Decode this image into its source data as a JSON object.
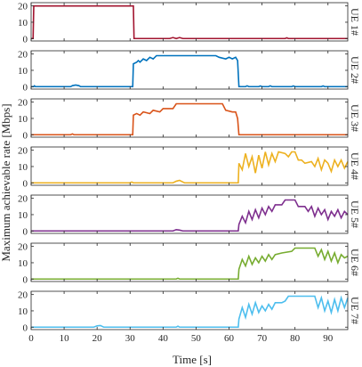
{
  "chart_data": {
    "type": "line",
    "xlabel": "Time [s]",
    "ylabel": "Maximum achievable rate [Mbps]",
    "xlim": [
      0,
      96
    ],
    "ylim": [
      -1.5,
      22
    ],
    "x_ticks": [
      0,
      10,
      20,
      30,
      40,
      50,
      60,
      70,
      80,
      90
    ],
    "y_ticks": [
      0,
      10,
      20
    ],
    "grid": false,
    "panels": [
      {
        "label": "UE 1#",
        "color": "#A2142F",
        "points": [
          [
            0,
            0
          ],
          [
            0.6,
            0
          ],
          [
            0.8,
            20
          ],
          [
            31,
            20
          ],
          [
            31.2,
            0
          ],
          [
            42,
            0
          ],
          [
            43,
            0.6
          ],
          [
            44,
            0
          ],
          [
            45,
            0.6
          ],
          [
            46,
            0
          ],
          [
            77,
            0
          ],
          [
            77.5,
            0.4
          ],
          [
            78,
            0
          ],
          [
            96,
            0
          ]
        ]
      },
      {
        "label": "UE 2#",
        "color": "#0072BD",
        "points": [
          [
            0,
            0
          ],
          [
            0.8,
            0
          ],
          [
            1,
            0.5
          ],
          [
            1.3,
            0
          ],
          [
            12,
            0
          ],
          [
            12.5,
            0.6
          ],
          [
            13.5,
            1
          ],
          [
            14.5,
            0.6
          ],
          [
            15,
            0
          ],
          [
            30.8,
            0
          ],
          [
            31,
            14
          ],
          [
            32,
            15
          ],
          [
            32.5,
            16
          ],
          [
            33,
            15
          ],
          [
            34,
            17
          ],
          [
            35,
            16
          ],
          [
            36,
            18
          ],
          [
            37,
            17
          ],
          [
            38,
            19
          ],
          [
            56,
            19
          ],
          [
            57,
            18
          ],
          [
            59,
            17
          ],
          [
            60,
            18
          ],
          [
            61,
            17
          ],
          [
            62,
            18
          ],
          [
            62.6,
            16
          ],
          [
            63,
            0
          ],
          [
            65,
            0
          ],
          [
            65.5,
            0.5
          ],
          [
            66,
            0
          ],
          [
            69,
            0
          ],
          [
            69.5,
            0.4
          ],
          [
            70,
            0
          ],
          [
            72,
            0
          ],
          [
            72.5,
            0.5
          ],
          [
            73,
            0
          ],
          [
            79,
            0
          ],
          [
            79.5,
            0.4
          ],
          [
            80,
            0
          ],
          [
            88,
            0
          ],
          [
            88.5,
            0.4
          ],
          [
            89,
            0
          ],
          [
            96,
            0
          ]
        ]
      },
      {
        "label": "UE 3#",
        "color": "#D95319",
        "points": [
          [
            0,
            0
          ],
          [
            12,
            0
          ],
          [
            12.5,
            0.5
          ],
          [
            13,
            0
          ],
          [
            30.8,
            0
          ],
          [
            31,
            12
          ],
          [
            32,
            13
          ],
          [
            33,
            12
          ],
          [
            34,
            14
          ],
          [
            36,
            13
          ],
          [
            37,
            15
          ],
          [
            39,
            14
          ],
          [
            40,
            16
          ],
          [
            43,
            16
          ],
          [
            44,
            19
          ],
          [
            58,
            19
          ],
          [
            59,
            15
          ],
          [
            61,
            14
          ],
          [
            62,
            14
          ],
          [
            62.6,
            10
          ],
          [
            63,
            0
          ],
          [
            96,
            0
          ]
        ]
      },
      {
        "label": "UE 4#",
        "color": "#EDB120",
        "points": [
          [
            0,
            0
          ],
          [
            30,
            0
          ],
          [
            30.5,
            0.5
          ],
          [
            31,
            0
          ],
          [
            43,
            0
          ],
          [
            44,
            1
          ],
          [
            45,
            1.5
          ],
          [
            46,
            0.5
          ],
          [
            46.5,
            0
          ],
          [
            62.8,
            0
          ],
          [
            63,
            12
          ],
          [
            64,
            8
          ],
          [
            65,
            18
          ],
          [
            66,
            10
          ],
          [
            67,
            16
          ],
          [
            68,
            6
          ],
          [
            69,
            17
          ],
          [
            70,
            9
          ],
          [
            71,
            19
          ],
          [
            72,
            11
          ],
          [
            73,
            18
          ],
          [
            74,
            13
          ],
          [
            75,
            19
          ],
          [
            77,
            18
          ],
          [
            78,
            16
          ],
          [
            79,
            19
          ],
          [
            80,
            19
          ],
          [
            81,
            14
          ],
          [
            82,
            14
          ],
          [
            83,
            12
          ],
          [
            85,
            13
          ],
          [
            86,
            10
          ],
          [
            87,
            15
          ],
          [
            88,
            8
          ],
          [
            89,
            14
          ],
          [
            90,
            12
          ],
          [
            91,
            7
          ],
          [
            92,
            14
          ],
          [
            93,
            10
          ],
          [
            94,
            14
          ],
          [
            95,
            9
          ],
          [
            96,
            13
          ]
        ]
      },
      {
        "label": "UE 5#",
        "color": "#7E2F8E",
        "points": [
          [
            0,
            0
          ],
          [
            43,
            0
          ],
          [
            44,
            0.8
          ],
          [
            45,
            0.5
          ],
          [
            46,
            0
          ],
          [
            62.8,
            0
          ],
          [
            63,
            4
          ],
          [
            64,
            9
          ],
          [
            65,
            5
          ],
          [
            66,
            12
          ],
          [
            67,
            7
          ],
          [
            68,
            13
          ],
          [
            69,
            8
          ],
          [
            70,
            14
          ],
          [
            71,
            10
          ],
          [
            72,
            15
          ],
          [
            73,
            12
          ],
          [
            74,
            16
          ],
          [
            76,
            16
          ],
          [
            77,
            19
          ],
          [
            80,
            19
          ],
          [
            81,
            15
          ],
          [
            83,
            15
          ],
          [
            84,
            12
          ],
          [
            85,
            15
          ],
          [
            86,
            9
          ],
          [
            87,
            14
          ],
          [
            88,
            10
          ],
          [
            89,
            13
          ],
          [
            90,
            7
          ],
          [
            91,
            12
          ],
          [
            92,
            9
          ],
          [
            93,
            13
          ],
          [
            94,
            8
          ],
          [
            95,
            12
          ],
          [
            96,
            10
          ]
        ]
      },
      {
        "label": "UE 6#",
        "color": "#77AC30",
        "points": [
          [
            0,
            0
          ],
          [
            44,
            0
          ],
          [
            44.5,
            0.5
          ],
          [
            45,
            0
          ],
          [
            62.8,
            0
          ],
          [
            63,
            6
          ],
          [
            64,
            12
          ],
          [
            65,
            8
          ],
          [
            66,
            14
          ],
          [
            67,
            9
          ],
          [
            68,
            13
          ],
          [
            69,
            10
          ],
          [
            70,
            14
          ],
          [
            71,
            11
          ],
          [
            72,
            15
          ],
          [
            73,
            12
          ],
          [
            74,
            15
          ],
          [
            76,
            16
          ],
          [
            79,
            17
          ],
          [
            80,
            19
          ],
          [
            86,
            19
          ],
          [
            87,
            14
          ],
          [
            88,
            18
          ],
          [
            89,
            12
          ],
          [
            90,
            17
          ],
          [
            91,
            11
          ],
          [
            92,
            16
          ],
          [
            93,
            10
          ],
          [
            94,
            15
          ],
          [
            95,
            13
          ],
          [
            96,
            14
          ]
        ]
      },
      {
        "label": "UE 7#",
        "color": "#4DBEEE",
        "points": [
          [
            0,
            0
          ],
          [
            19,
            0
          ],
          [
            20,
            0.8
          ],
          [
            21,
            1
          ],
          [
            22,
            0
          ],
          [
            44,
            0
          ],
          [
            44.5,
            0.6
          ],
          [
            45,
            0
          ],
          [
            62.8,
            0
          ],
          [
            63,
            5
          ],
          [
            64,
            12
          ],
          [
            65,
            6
          ],
          [
            66,
            14
          ],
          [
            67,
            8
          ],
          [
            68,
            15
          ],
          [
            69,
            9
          ],
          [
            70,
            13
          ],
          [
            71,
            10
          ],
          [
            72,
            14
          ],
          [
            73,
            11
          ],
          [
            74,
            15
          ],
          [
            76,
            15
          ],
          [
            77,
            16
          ],
          [
            78,
            19
          ],
          [
            86,
            19
          ],
          [
            87,
            12
          ],
          [
            88,
            18
          ],
          [
            89,
            10
          ],
          [
            90,
            16
          ],
          [
            91,
            9
          ],
          [
            92,
            17
          ],
          [
            93,
            10
          ],
          [
            94,
            18
          ],
          [
            95,
            12
          ],
          [
            96,
            18
          ]
        ]
      }
    ]
  }
}
